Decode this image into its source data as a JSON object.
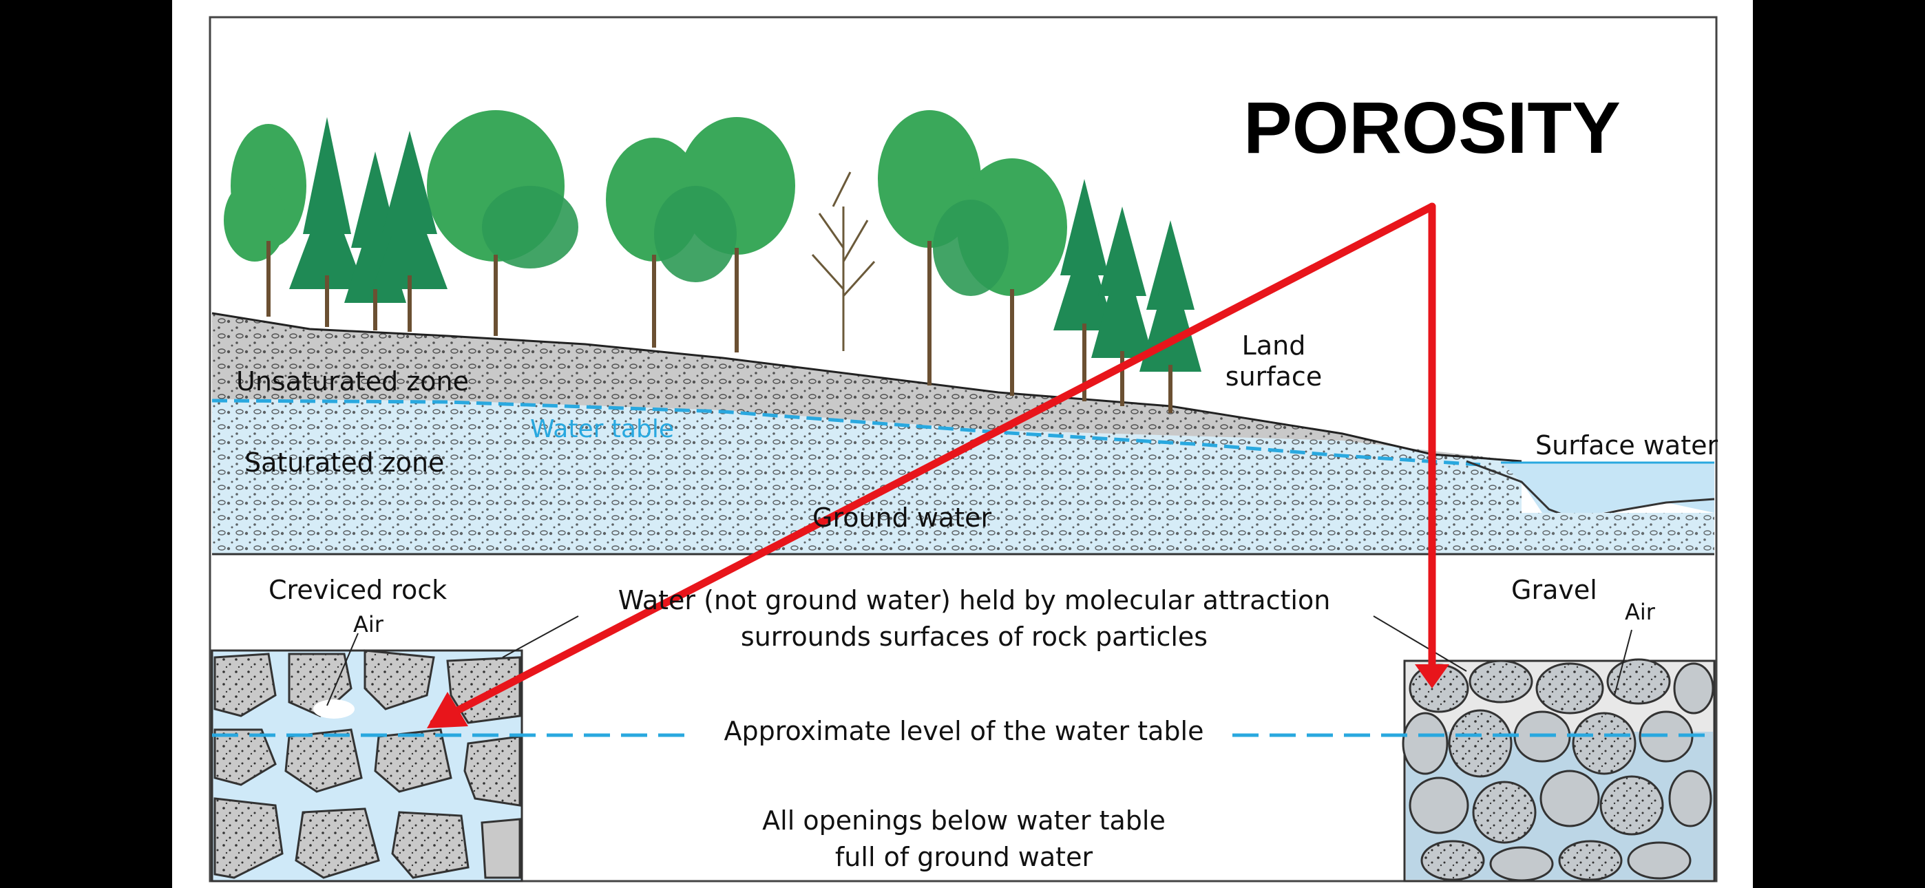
{
  "title": "POROSITY",
  "labels": {
    "unsaturated_zone": "Unsaturated zone",
    "water_table": "Water table",
    "saturated_zone": "Saturated zone",
    "ground_water": "Ground water",
    "land_surface_line1": "Land",
    "land_surface_line2": "surface",
    "surface_water": "Surface water",
    "creviced_rock": "Creviced rock",
    "air_left": "Air",
    "molecular_line1": "Water (not ground water) held by molecular attraction",
    "molecular_line2": "surrounds surfaces of rock particles",
    "approx_level": "Approximate level of the water table",
    "openings_line1": "All openings below water table",
    "openings_line2": "full of ground water",
    "gravel": "Gravel",
    "air_right": "Air"
  },
  "colors": {
    "background": "#000000",
    "slide": "#ffffff",
    "soil_gray": "#c9c9c9",
    "saturated_blue": "#d6ecf7",
    "water_table_blue": "#29a8df",
    "tree_green": "#3aa85a",
    "tree_dark": "#1f7a45",
    "arrow_red": "#e8151b"
  }
}
